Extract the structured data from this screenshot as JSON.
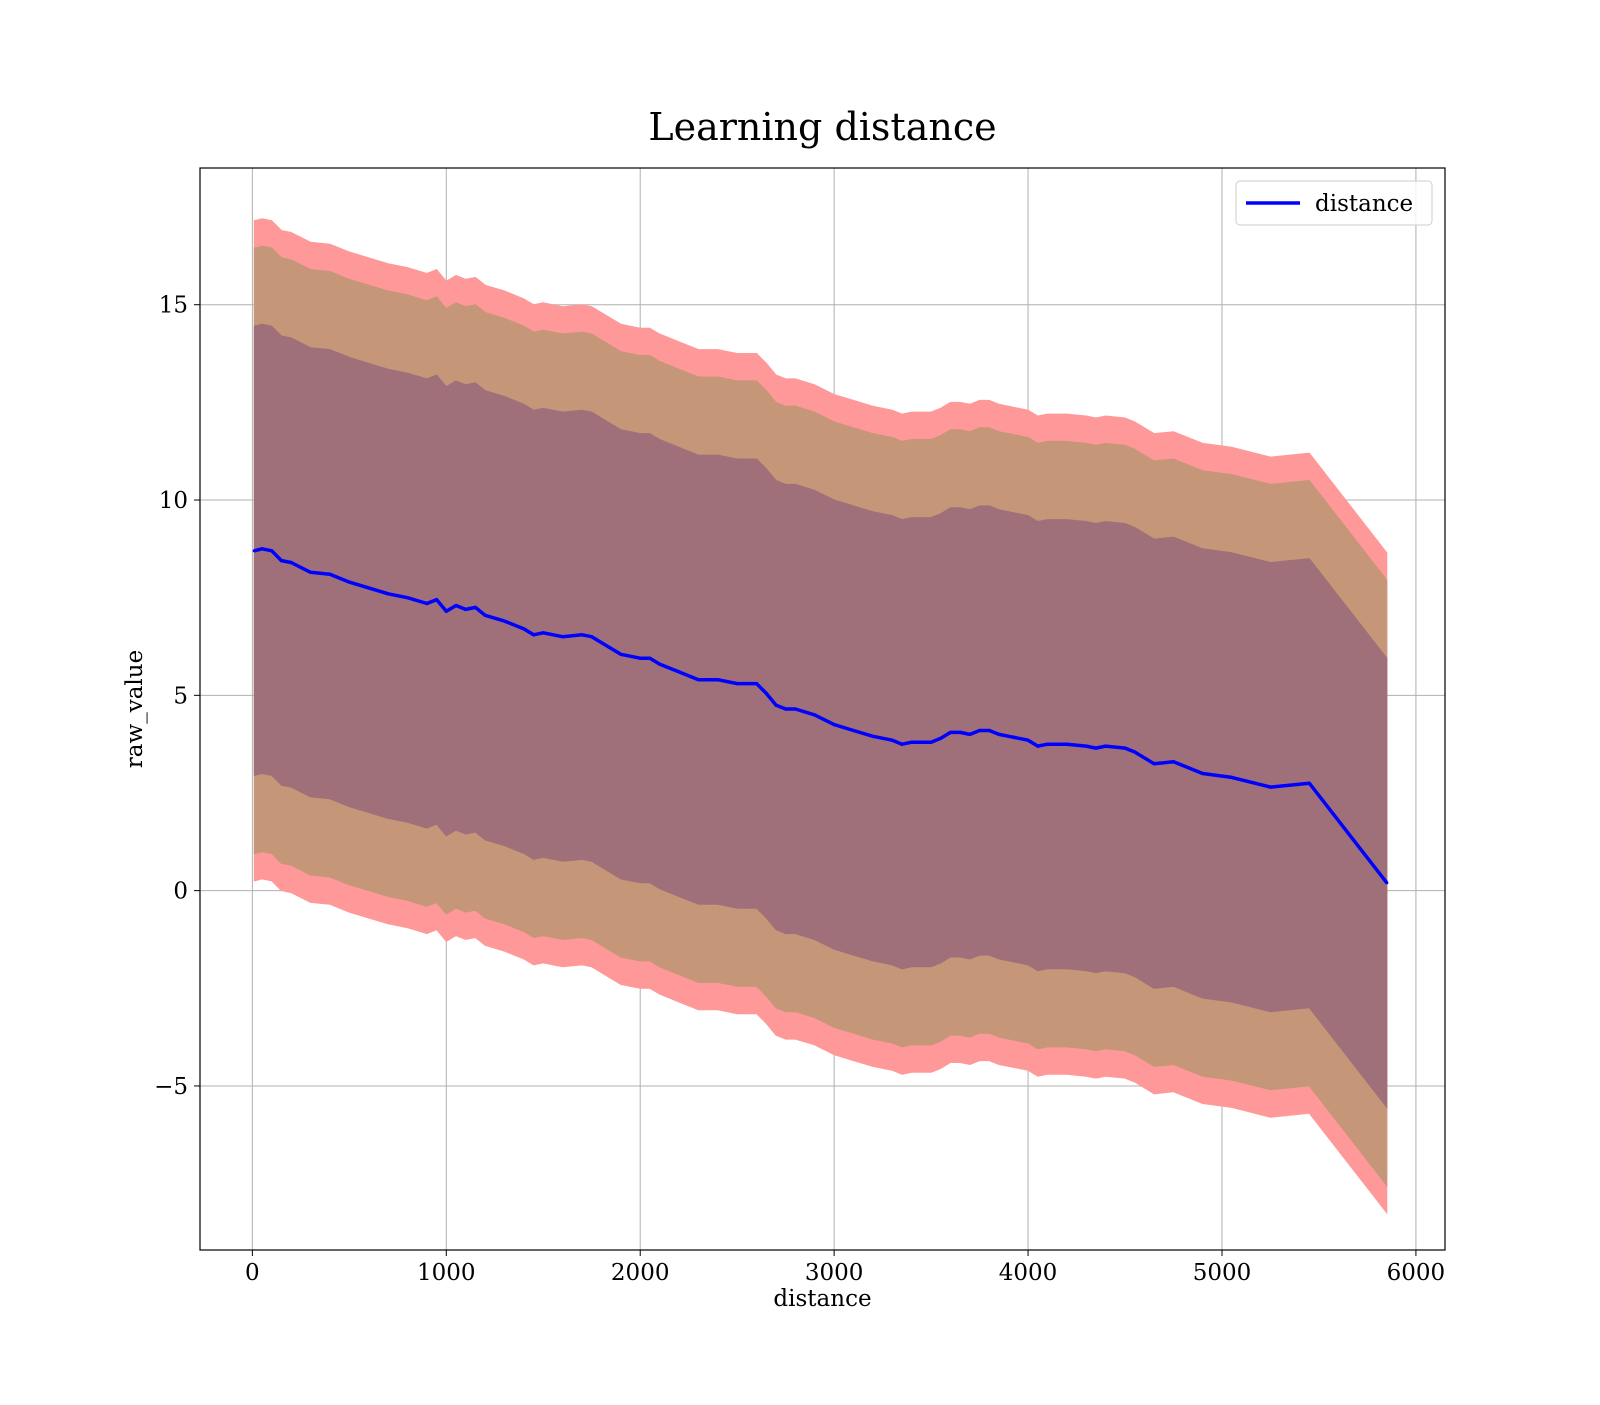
{
  "chart_data": {
    "type": "line",
    "title": "Learning distance",
    "xlabel": "distance",
    "ylabel": "raw_value",
    "xlim": [
      -270,
      6150
    ],
    "ylim": [
      -9.2,
      18.5
    ],
    "xticks": [
      0,
      1000,
      2000,
      3000,
      4000,
      5000,
      6000
    ],
    "xtick_labels": [
      "0",
      "1000",
      "2000",
      "3000",
      "4000",
      "5000",
      "6000"
    ],
    "yticks": [
      -5,
      0,
      5,
      10,
      15
    ],
    "ytick_labels": [
      "−5",
      "0",
      "5",
      "10",
      "15"
    ],
    "grid": true,
    "legend": {
      "position": "top-right",
      "entries": [
        "distance"
      ]
    },
    "colors": {
      "line": "#0000ff",
      "band_outer": "#ff9999",
      "band_middle": "#c69678",
      "band_inner": "#a0707a"
    },
    "series": [
      {
        "name": "distance",
        "x": [
          10,
          50,
          100,
          150,
          200,
          300,
          400,
          500,
          600,
          700,
          800,
          900,
          950,
          1000,
          1050,
          1100,
          1150,
          1200,
          1300,
          1400,
          1450,
          1500,
          1600,
          1700,
          1750,
          1800,
          1900,
          2000,
          2050,
          2100,
          2200,
          2300,
          2400,
          2500,
          2550,
          2600,
          2650,
          2700,
          2750,
          2800,
          2900,
          3000,
          3100,
          3200,
          3300,
          3350,
          3400,
          3500,
          3550,
          3600,
          3650,
          3700,
          3750,
          3800,
          3850,
          3900,
          4000,
          4050,
          4100,
          4200,
          4300,
          4350,
          4400,
          4500,
          4550,
          4650,
          4750,
          4900,
          5050,
          5250,
          5450,
          5850
        ],
        "y": [
          8.7,
          8.75,
          8.7,
          8.45,
          8.4,
          8.15,
          8.1,
          7.9,
          7.75,
          7.6,
          7.5,
          7.35,
          7.45,
          7.15,
          7.3,
          7.2,
          7.25,
          7.05,
          6.9,
          6.7,
          6.55,
          6.6,
          6.5,
          6.55,
          6.5,
          6.35,
          6.05,
          5.95,
          5.95,
          5.8,
          5.6,
          5.4,
          5.4,
          5.3,
          5.3,
          5.3,
          5.05,
          4.75,
          4.65,
          4.65,
          4.5,
          4.25,
          4.1,
          3.95,
          3.85,
          3.75,
          3.8,
          3.8,
          3.9,
          4.05,
          4.05,
          4.0,
          4.1,
          4.1,
          4.0,
          3.95,
          3.85,
          3.7,
          3.75,
          3.75,
          3.7,
          3.65,
          3.7,
          3.65,
          3.55,
          3.25,
          3.3,
          3.0,
          2.9,
          2.65,
          2.75,
          0.2
        ],
        "bands": [
          {
            "label": "outer",
            "offset_upper": 8.45,
            "offset_lower": -8.45
          },
          {
            "label": "middle",
            "offset_upper": 7.75,
            "offset_lower": -7.75
          },
          {
            "label": "inner",
            "offset_upper": 5.75,
            "offset_lower": -5.75
          }
        ]
      }
    ]
  }
}
